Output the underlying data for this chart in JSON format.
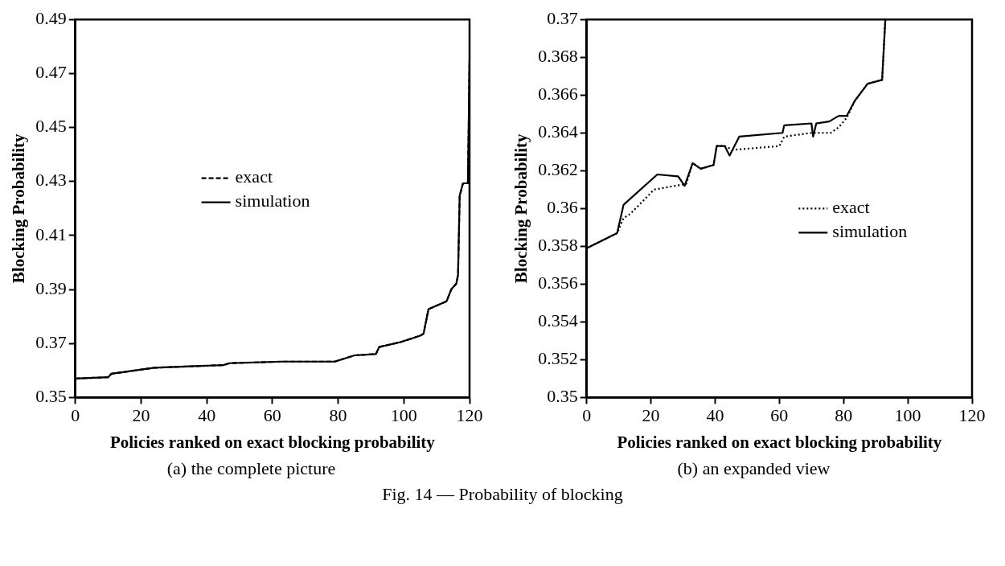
{
  "chart_data": [
    {
      "type": "line",
      "xlabel": "Policies ranked on exact blocking probability",
      "ylabel": "Blocking Probability",
      "xlim": [
        0,
        120
      ],
      "xticks": [
        0,
        20,
        40,
        60,
        80,
        100,
        120
      ],
      "ylim": [
        0.35,
        0.49
      ],
      "yticks": [
        0.35,
        0.37,
        0.39,
        0.41,
        0.43,
        0.45,
        0.47,
        0.49
      ],
      "legend": "center",
      "annotations": [
        "(a) the complete picture",
        "Fig. 14 — Probability of blocking"
      ],
      "series": [
        {
          "name": "exact",
          "color": "#000000",
          "line_style": "dashed",
          "x": [
            0,
            10,
            11,
            24,
            45,
            47,
            63,
            79,
            85,
            91.5,
            92.5,
            99,
            105,
            106,
            107.5,
            113,
            114.5,
            116,
            116.5,
            117,
            118,
            119.5,
            120
          ],
          "values": [
            0.357,
            0.3575,
            0.3588,
            0.361,
            0.362,
            0.3627,
            0.3633,
            0.3633,
            0.3656,
            0.3661,
            0.3687,
            0.3705,
            0.3729,
            0.3736,
            0.3827,
            0.3856,
            0.3902,
            0.3922,
            0.3955,
            0.4247,
            0.4293,
            0.4294,
            0.475
          ]
        },
        {
          "name": "simulation",
          "color": "#000000",
          "line_style": "solid",
          "x": [
            0,
            10,
            11,
            24,
            45,
            47,
            63,
            79,
            85,
            91.5,
            92.5,
            99,
            105,
            106,
            107.5,
            113,
            114.5,
            116,
            116.5,
            117,
            118,
            119.5,
            120
          ],
          "values": [
            0.357,
            0.3575,
            0.3588,
            0.361,
            0.362,
            0.3627,
            0.3633,
            0.3633,
            0.3656,
            0.3661,
            0.3687,
            0.3705,
            0.3729,
            0.3736,
            0.3827,
            0.3856,
            0.3902,
            0.3922,
            0.3955,
            0.4247,
            0.4293,
            0.4294,
            0.475
          ]
        }
      ]
    },
    {
      "type": "line",
      "xlabel": "Policies ranked on exact blocking probability",
      "ylabel": "Blocking Probability",
      "xlim": [
        0,
        120
      ],
      "xticks": [
        0,
        20,
        40,
        60,
        80,
        100,
        120
      ],
      "ylim": [
        0.35,
        0.37
      ],
      "yticks": [
        0.35,
        0.352,
        0.354,
        0.356,
        0.358,
        0.36,
        0.362,
        0.364,
        0.366,
        0.368,
        0.37
      ],
      "legend": "center right",
      "annotations": [
        "(b) an expanded view"
      ],
      "series": [
        {
          "name": "exact",
          "color": "#000000",
          "line_style": "dotted",
          "x": [
            0,
            9.5,
            11.5,
            13.5,
            21,
            31,
            33,
            35.5,
            39.5,
            40.5,
            43,
            45.5,
            60,
            61.5,
            70,
            76,
            78.5,
            81,
            83.5,
            87.5,
            92,
            93
          ],
          "values": [
            0.3579,
            0.3587,
            0.3595,
            0.3597,
            0.361,
            0.3613,
            0.3624,
            0.3621,
            0.3623,
            0.3633,
            0.3633,
            0.3631,
            0.3633,
            0.3638,
            0.364,
            0.364,
            0.3643,
            0.3648,
            0.3657,
            0.3666,
            0.3668,
            0.37
          ]
        },
        {
          "name": "simulation",
          "color": "#000000",
          "line_style": "solid",
          "x": [
            0,
            9.5,
            11.5,
            22,
            28.5,
            30.5,
            33,
            35.5,
            39.5,
            40.5,
            43,
            44.5,
            47.5,
            61,
            61.5,
            70,
            70.5,
            71.5,
            75.5,
            78.5,
            81,
            83.5,
            87.5,
            92,
            93
          ],
          "values": [
            0.3579,
            0.3587,
            0.3602,
            0.3618,
            0.3617,
            0.3612,
            0.3624,
            0.3621,
            0.3623,
            0.3633,
            0.3633,
            0.3628,
            0.3638,
            0.364,
            0.3644,
            0.3645,
            0.3638,
            0.3645,
            0.3646,
            0.3649,
            0.3649,
            0.3657,
            0.3666,
            0.3668,
            0.37
          ]
        }
      ]
    }
  ]
}
